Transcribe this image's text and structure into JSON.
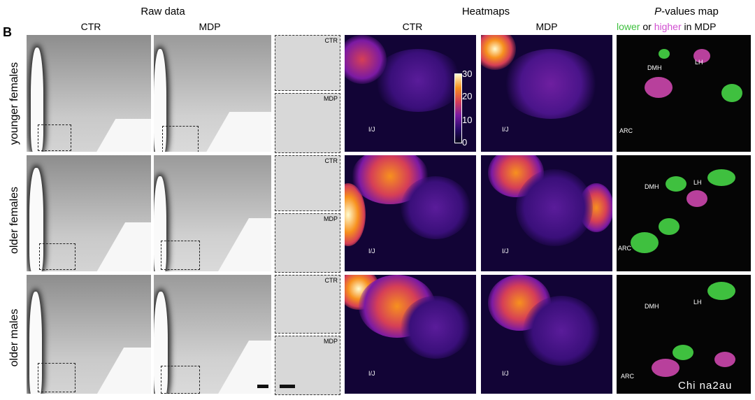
{
  "headers": {
    "raw_data": "Raw data",
    "heatmaps": "Heatmaps",
    "pvalues_prefix": "P",
    "pvalues_rest": "-values map"
  },
  "panel_label": "B",
  "column_labels": {
    "raw_ctr": "CTR",
    "raw_mdp": "MDP",
    "heat_ctr": "CTR",
    "heat_mdp": "MDP"
  },
  "pvalue_legend": {
    "lower": "lower",
    "or": "or",
    "higher": "higher",
    "in_mdp": "in MDP",
    "lower_color": "#3fc03f",
    "higher_color": "#d14fd1"
  },
  "rows": [
    {
      "label": "younger females"
    },
    {
      "label": "older females"
    },
    {
      "label": "older males"
    }
  ],
  "zoom_tags": {
    "ctr": "CTR",
    "mdp": "MDP"
  },
  "colorbar": {
    "ticks": [
      "30",
      "20",
      "10",
      "0"
    ],
    "range": [
      0,
      30
    ]
  },
  "regions": {
    "dmh": "DMH",
    "lh": "LH",
    "arc": "ARC",
    "vmh_mark": "I/J"
  },
  "watermark": "Chi na2au"
}
